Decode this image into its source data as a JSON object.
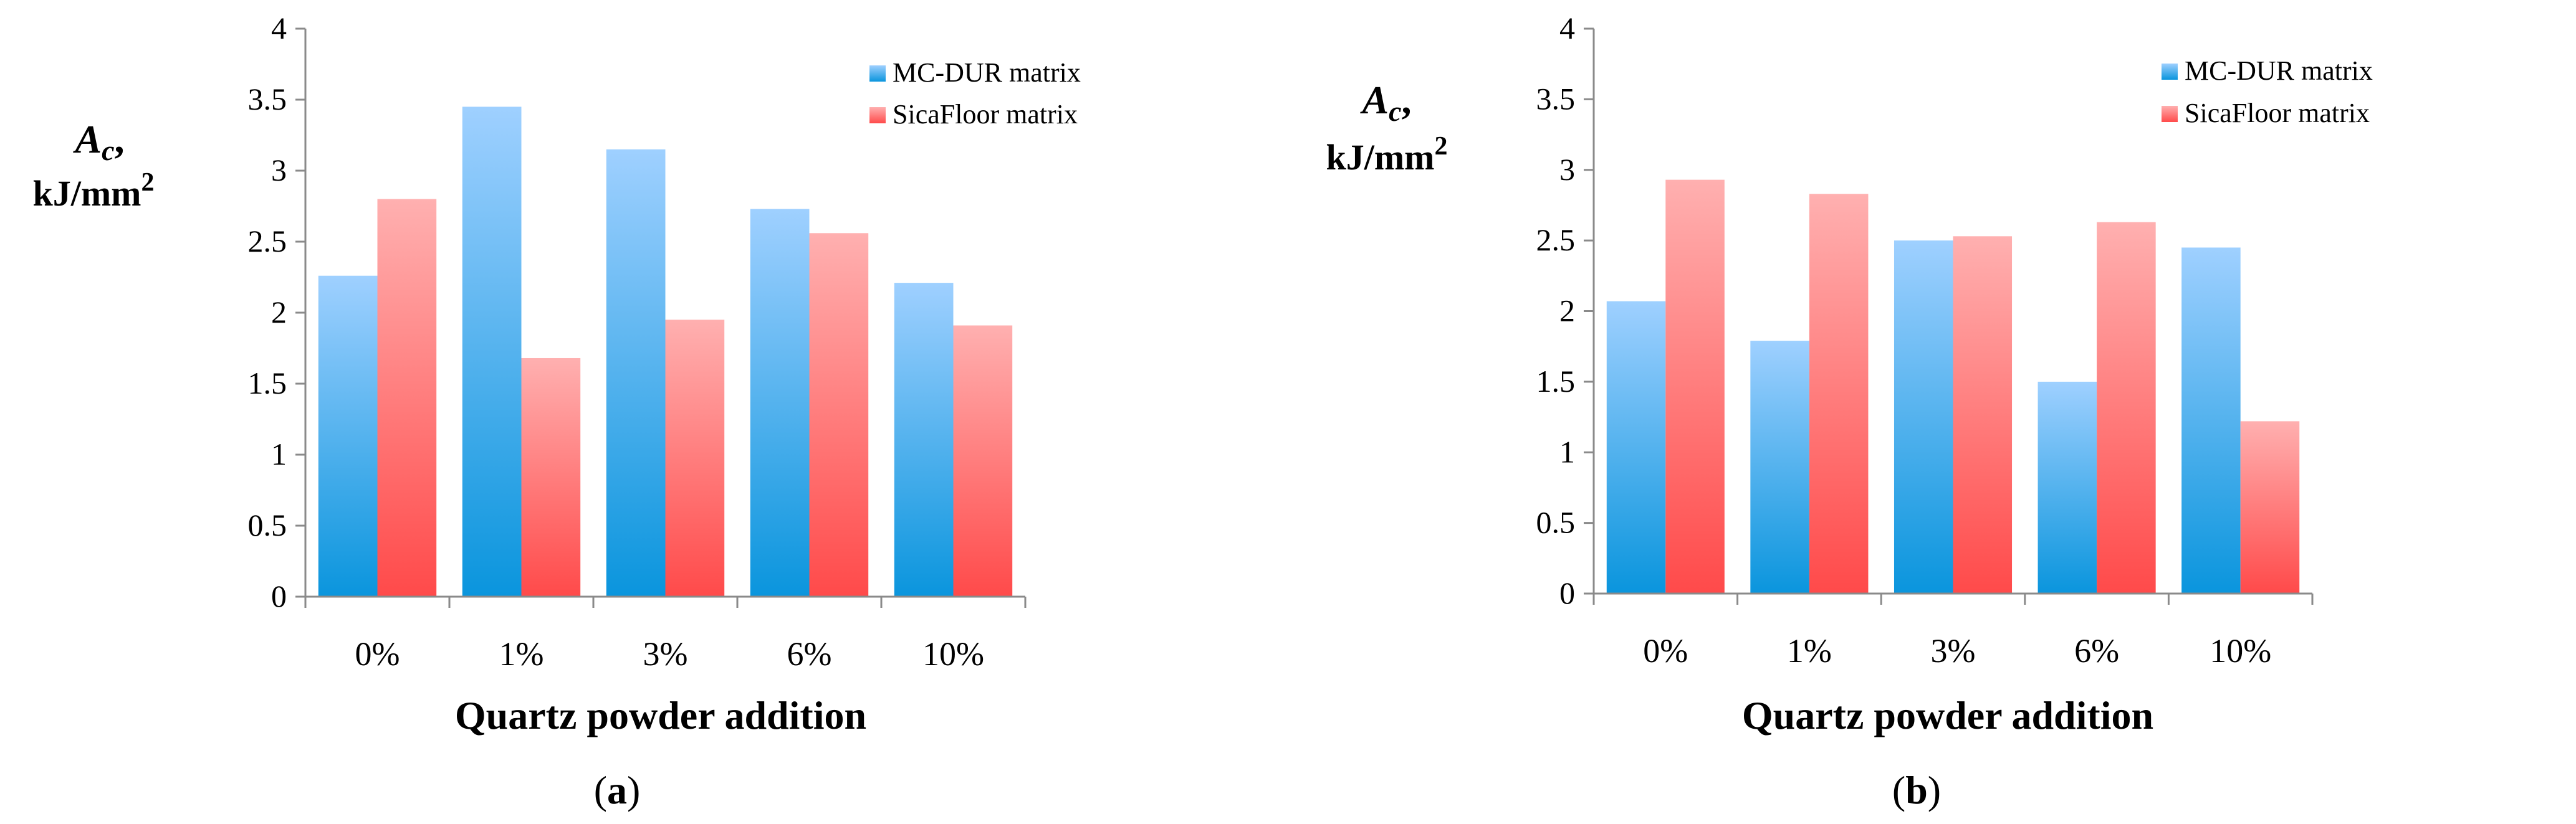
{
  "colors": {
    "series_0_top": "#9fd0ff",
    "series_0_bottom": "#0a95dd",
    "series_1_top": "#ffb0b0",
    "series_1_bottom": "#ff4a4a",
    "axis": "#8a8a8a",
    "text": "#000000"
  },
  "chart_data": [
    {
      "type": "bar",
      "panel_label_prefix": "(",
      "panel_label_letter": "a",
      "panel_label_suffix": ")",
      "ylabel_symbol": "A",
      "ylabel_subscript": "c",
      "ylabel_comma": ",",
      "ylabel_unit": "kJ/mm",
      "ylabel_unit_exp": "2",
      "xlabel": "Quartz powder addition",
      "categories": [
        "0%",
        "1%",
        "3%",
        "6%",
        "10%"
      ],
      "ylim": [
        0,
        4
      ],
      "yticks": [
        "0",
        "0.5",
        "1",
        "1.5",
        "2",
        "2.5",
        "3",
        "3.5",
        "4"
      ],
      "grid": false,
      "legend_position": "top-right",
      "series": [
        {
          "name": "MC-DUR matrix",
          "values": [
            2.26,
            3.45,
            3.15,
            2.73,
            2.21
          ]
        },
        {
          "name": "SicaFloor matrix",
          "values": [
            2.8,
            1.68,
            1.95,
            2.56,
            1.91
          ]
        }
      ]
    },
    {
      "type": "bar",
      "panel_label_prefix": "(",
      "panel_label_letter": "b",
      "panel_label_suffix": ")",
      "ylabel_symbol": "A",
      "ylabel_subscript": "c",
      "ylabel_comma": ",",
      "ylabel_unit": "kJ/mm",
      "ylabel_unit_exp": "2",
      "xlabel": "Quartz powder addition",
      "categories": [
        "0%",
        "1%",
        "3%",
        "6%",
        "10%"
      ],
      "ylim": [
        0,
        4
      ],
      "yticks": [
        "0",
        "0.5",
        "1",
        "1.5",
        "2",
        "2.5",
        "3",
        "3.5",
        "4"
      ],
      "grid": false,
      "legend_position": "top-right",
      "series": [
        {
          "name": "MC-DUR matrix",
          "values": [
            2.07,
            1.79,
            2.5,
            1.5,
            2.45
          ]
        },
        {
          "name": "SicaFloor matrix",
          "values": [
            2.93,
            2.83,
            2.53,
            2.63,
            1.22
          ]
        }
      ]
    }
  ]
}
